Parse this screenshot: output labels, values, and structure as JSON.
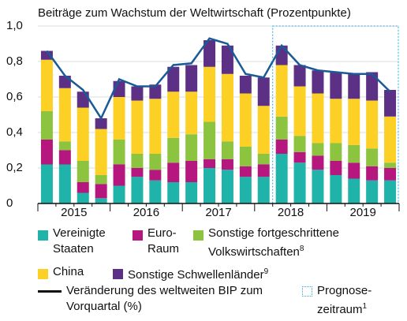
{
  "chart_data": {
    "type": "stacked_bar_line",
    "title": "Beiträge zum Wachstum der Weltwirtschaft (Prozentpunkte)",
    "categories": [
      null,
      null,
      null,
      null,
      null,
      null,
      null,
      null,
      null,
      null,
      null,
      null,
      null,
      null,
      null,
      null,
      null,
      null,
      null,
      null
    ],
    "year_labels": [
      "2015",
      "2016",
      "2017",
      "2018",
      "2019"
    ],
    "ylim": [
      0,
      1.0
    ],
    "yticks": [
      0,
      {
        "value": 0.2,
        "label": "0,2"
      },
      {
        "value": 0.4,
        "label": "0,4"
      },
      {
        "value": 0.6,
        "label": "0,6"
      },
      {
        "value": 0.8,
        "label": "0,8"
      },
      {
        "value": 1.0,
        "label": "1,0"
      }
    ],
    "grid": true,
    "series": [
      {
        "name": "Vereinigte Staaten",
        "color": "#1fb3a9",
        "values": [
          0.22,
          0.22,
          0.06,
          0.03,
          0.1,
          0.15,
          0.13,
          0.12,
          0.12,
          0.2,
          0.19,
          0.15,
          0.15,
          0.28,
          0.23,
          0.19,
          0.16,
          0.14,
          0.13,
          0.13
        ]
      },
      {
        "name": "Euro-Raum",
        "color": "#b5177e",
        "values": [
          0.14,
          0.08,
          0.06,
          0.08,
          0.12,
          0.05,
          0.06,
          0.11,
          0.12,
          0.05,
          0.06,
          0.06,
          0.07,
          0.08,
          0.06,
          0.08,
          0.08,
          0.09,
          0.08,
          0.07
        ]
      },
      {
        "name": "Sonstige fortgeschrittene Volkswirtschaften",
        "footnote": "8",
        "color": "#8cc43f",
        "values": [
          0.16,
          0.05,
          0.12,
          0.05,
          0.14,
          0.08,
          0.09,
          0.14,
          0.15,
          0.21,
          0.1,
          0.11,
          0.06,
          0.13,
          0.09,
          0.07,
          0.1,
          0.1,
          0.1,
          0.03
        ]
      },
      {
        "name": "China",
        "color": "#fdd025",
        "values": [
          0.29,
          0.3,
          0.3,
          0.26,
          0.24,
          0.3,
          0.31,
          0.26,
          0.24,
          0.31,
          0.38,
          0.3,
          0.27,
          0.29,
          0.28,
          0.28,
          0.25,
          0.26,
          0.27,
          0.26
        ]
      },
      {
        "name": "Sonstige Schwellenländer",
        "footnote": "9",
        "color": "#5c3185",
        "values": [
          0.05,
          0.07,
          0.09,
          0.06,
          0.09,
          0.08,
          0.08,
          0.14,
          0.15,
          0.15,
          0.16,
          0.1,
          0.16,
          0.11,
          0.12,
          0.13,
          0.15,
          0.14,
          0.16,
          0.15
        ]
      }
    ],
    "line": {
      "name": "Veränderung des weltweiten BIP zum Vorquartal (%)",
      "color": "#1a5a96",
      "values": [
        0.86,
        0.72,
        0.64,
        0.48,
        0.7,
        0.66,
        0.66,
        0.78,
        0.79,
        0.93,
        0.9,
        0.73,
        0.71,
        0.89,
        0.78,
        0.75,
        0.74,
        0.73,
        0.73,
        0.63
      ]
    },
    "forecast": {
      "label": "Prognose-zeitraum",
      "footnote": "1",
      "start_index": 13,
      "color": "#29a8e0"
    }
  }
}
